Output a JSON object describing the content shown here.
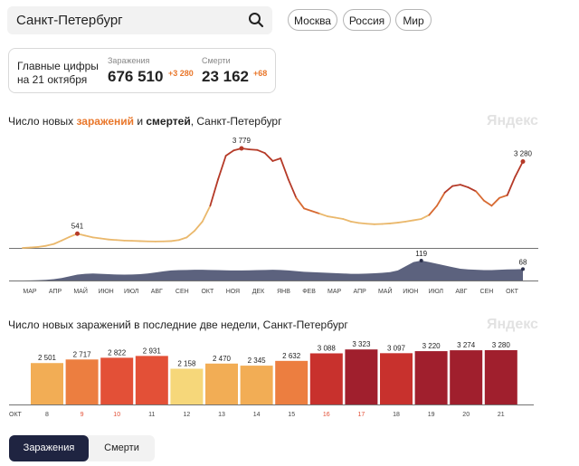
{
  "header": {
    "search_value": "Санкт-Петербург",
    "regions": [
      "Москва",
      "Россия",
      "Мир"
    ]
  },
  "summary": {
    "line1": "Главные цифры",
    "line2": "на 21 октября",
    "infections_label": "Заражения",
    "infections_value": "676 510",
    "infections_delta": "+3 280",
    "deaths_label": "Смерти",
    "deaths_value": "23 162",
    "deaths_delta": "+68"
  },
  "chart1": {
    "title_prefix": "Число новых ",
    "title_inf": "заражений",
    "title_mid": " и ",
    "title_dth": "смертей",
    "title_suffix": ", Санкт-Петербург",
    "watermark": "Яндекс"
  },
  "chart2": {
    "title": "Число новых заражений в последние две недели, Санкт-Петербург",
    "watermark": "Яндекс"
  },
  "tabs": {
    "active": "Заражения",
    "inactive": "Смерти"
  },
  "colors": {
    "infections_accent": "#e9772b",
    "deaths_accent": "#e9772b",
    "deaths_area": "#4a5170",
    "active_tab": "#1f2441",
    "scale": [
      "#f6d77a",
      "#f2ad55",
      "#ec7e40",
      "#e35037",
      "#c8312d",
      "#a01f2d"
    ]
  },
  "chart_data": [
    {
      "type": "line",
      "series": [
        {
          "values": [
            0,
            15,
            40,
            80,
            150,
            280,
            420,
            541,
            470,
            400,
            360,
            320,
            300,
            280,
            270,
            260,
            250,
            245,
            250,
            260,
            300,
            400,
            650,
            1000,
            1600,
            2600,
            3500,
            3700,
            3779,
            3740,
            3720,
            3600,
            3300,
            3400,
            2600,
            1900,
            1500,
            1400,
            1300,
            1200,
            1150,
            1100,
            1000,
            950,
            920,
            900,
            910,
            930,
            960,
            1000,
            1050,
            1100,
            1250,
            1600,
            2100,
            2350,
            2400,
            2300,
            2150,
            1800,
            1600,
            1900,
            2000,
            2700,
            3280
          ]
        }
      ],
      "x_ticks": [
        "МАР",
        "АПР",
        "МАЙ",
        "ИЮН",
        "ИЮЛ",
        "АВГ",
        "СЕН",
        "ОКТ",
        "НОЯ",
        "ДЕК",
        "ЯНВ",
        "ФЕВ",
        "МАР",
        "АПР",
        "МАЙ",
        "ИЮН",
        "ИЮЛ",
        "АВГ",
        "СЕН",
        "ОКТ"
      ],
      "annotations": [
        {
          "label": "541",
          "value": 541,
          "index": 7
        },
        {
          "label": "3 779",
          "value": 3779,
          "index": 28
        },
        {
          "label": "3 280",
          "value": 3280,
          "index": 64
        }
      ]
    },
    {
      "type": "area",
      "series": [
        {
          "values": [
            0,
            1,
            2,
            4,
            8,
            15,
            25,
            35,
            40,
            42,
            40,
            38,
            36,
            35,
            36,
            38,
            42,
            48,
            55,
            60,
            62,
            63,
            64,
            64,
            63,
            62,
            61,
            60,
            60,
            61,
            62,
            63,
            64,
            63,
            60,
            56,
            52,
            50,
            48,
            46,
            44,
            42,
            40,
            40,
            41,
            43,
            46,
            50,
            60,
            85,
            110,
            119,
            110,
            100,
            90,
            80,
            70,
            66,
            64,
            62,
            62,
            64,
            66,
            67,
            68
          ]
        }
      ],
      "annotations": [
        {
          "label": "119",
          "value": 119,
          "index": 51
        },
        {
          "label": "68",
          "value": 68,
          "index": 64
        }
      ]
    },
    {
      "type": "bar",
      "categories": [
        "8",
        "9",
        "10",
        "11",
        "12",
        "13",
        "14",
        "15",
        "16",
        "17",
        "18",
        "19",
        "20",
        "21"
      ],
      "month_label": "ОКТ",
      "values": [
        2501,
        2717,
        2822,
        2931,
        2158,
        2470,
        2345,
        2632,
        3088,
        3323,
        3097,
        3220,
        3274,
        3280
      ],
      "value_labels": [
        "2 501",
        "2 717",
        "2 822",
        "2 931",
        "2 158",
        "2 470",
        "2 345",
        "2 632",
        "3 088",
        "3 323",
        "3 097",
        "3 220",
        "3 274",
        "3 280"
      ],
      "weekend_categories": [
        "9",
        "10",
        "16",
        "17"
      ],
      "ylim": [
        0,
        3500
      ]
    }
  ]
}
